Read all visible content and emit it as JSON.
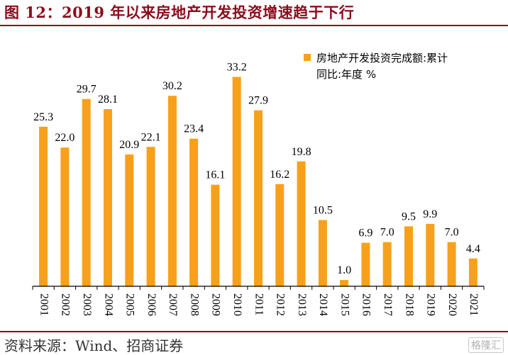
{
  "header": {
    "title": "图 12：2019 年以来房地产开发投资增速趋于下行"
  },
  "footer": {
    "source": "资料来源：Wind、招商证券",
    "watermark": "格隆汇"
  },
  "colors": {
    "bar": "#f7a11a",
    "title": "#8b0c1c",
    "axis": "#000000"
  },
  "chart_data": {
    "type": "bar",
    "title": "",
    "xlabel": "",
    "ylabel": "",
    "ylim": [
      0,
      35
    ],
    "categories": [
      "2001",
      "2002",
      "2003",
      "2004",
      "2005",
      "2006",
      "2007",
      "2008",
      "2009",
      "2010",
      "2011",
      "2012",
      "2013",
      "2014",
      "2015",
      "2016",
      "2017",
      "2018",
      "2019",
      "2020",
      "2021"
    ],
    "series": [
      {
        "name": "房地产开发投资完成额:累计同比:年度 %",
        "legend_line1": "房地产开发投资完成额:累计",
        "legend_line2": "同比:年度 %",
        "values": [
          25.3,
          22.0,
          29.7,
          28.1,
          20.9,
          22.1,
          30.2,
          23.4,
          16.1,
          33.2,
          27.9,
          16.2,
          19.8,
          10.5,
          1.0,
          6.9,
          7.0,
          9.5,
          9.9,
          7.0,
          4.4
        ],
        "labels": [
          "25.3",
          "22.0",
          "29.7",
          "28.1",
          "20.9",
          "22.1",
          "30.2",
          "23.4",
          "16.1",
          "33.2",
          "27.9",
          "16.2",
          "19.8",
          "10.5",
          "1.0",
          "6.9",
          "7.0",
          "9.5",
          "9.9",
          "7.0",
          "4.4"
        ]
      }
    ],
    "legend_position": "top-right",
    "grid": false
  }
}
